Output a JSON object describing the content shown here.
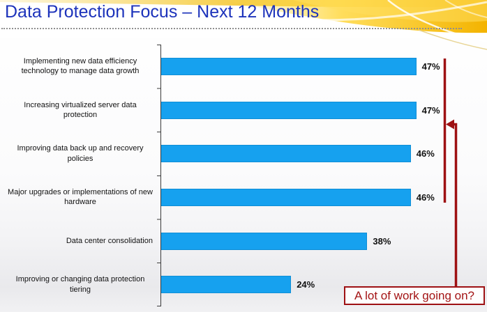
{
  "slide": {
    "title": "Data Protection Focus – Next 12 Months"
  },
  "chart_data": {
    "type": "bar",
    "orientation": "horizontal",
    "title": "Data Protection Focus – Next 12 Months",
    "categories": [
      "Implementing new data efficiency technology to manage data growth",
      "Increasing virtualized server data protection",
      "Improving data back up and recovery policies",
      "Major upgrades or implementations of new hardware",
      "Data center consolidation",
      "Improving or changing data protection tiering"
    ],
    "values": [
      47,
      47,
      46,
      46,
      38,
      24
    ],
    "value_labels": [
      "47%",
      "47%",
      "46%",
      "46%",
      "38%",
      "24%"
    ],
    "unit": "%",
    "xlim": [
      0,
      55
    ],
    "gridlines": false,
    "legend": false,
    "bar_color": "#16a1ef"
  },
  "annotation": {
    "callout_text": "A lot of work going on?",
    "bracket_from_row": 1,
    "bracket_to_row": 4,
    "color": "#9e1113"
  },
  "colors": {
    "title_blue": "#1d33bb",
    "bar_blue": "#16a1ef",
    "bar_border": "#0f8ed6",
    "annotation_red": "#9e1113",
    "axis_black": "#3a3a3a",
    "header_gold": "#f3b300"
  }
}
